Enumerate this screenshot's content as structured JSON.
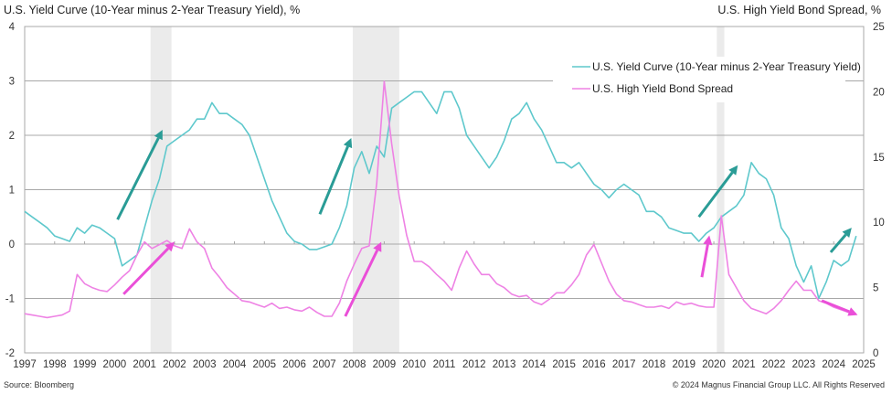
{
  "header": {
    "left_title": "U.S. Yield Curve (10-Year minus 2-Year Treasury Yield), %",
    "right_title": "U.S. High Yield Bond Spread, %"
  },
  "footer": {
    "source": "Source: Bloomberg",
    "copyright": "© 2024 Magnus Financial Group LLC. All Rights Reserved"
  },
  "colors": {
    "yield_curve": "#5ec8cc",
    "hy_spread": "#ee82e4",
    "arrow_teal": "#2a9c96",
    "arrow_pink": "#ea4fd8",
    "recession": "#ebebeb",
    "grid": "#a8a8a8"
  },
  "chart_data": {
    "type": "line",
    "title_left": "U.S. Yield Curve (10-Year minus 2-Year Treasury Yield), %",
    "title_right": "U.S. High Yield Bond Spread, %",
    "xlim": [
      1997,
      2025
    ],
    "x_ticks": [
      "1997",
      "1998",
      "1999",
      "2000",
      "2001",
      "2002",
      "2003",
      "2004",
      "2005",
      "2006",
      "2007",
      "2008",
      "2009",
      "2010",
      "2011",
      "2012",
      "2013",
      "2014",
      "2015",
      "2016",
      "2017",
      "2018",
      "2019",
      "2020",
      "2021",
      "2022",
      "2023",
      "2024",
      "2025"
    ],
    "y_left": {
      "label": "U.S. Yield Curve (10-Year minus 2-Year Treasury Yield), %",
      "lim": [
        -2,
        4
      ],
      "ticks": [
        "-2",
        "-1",
        "0",
        "1",
        "2",
        "3",
        "4"
      ]
    },
    "y_right": {
      "label": "U.S. High Yield Bond Spread, %",
      "lim": [
        0,
        25
      ],
      "ticks": [
        "0",
        "5",
        "10",
        "15",
        "20",
        "25"
      ]
    },
    "grid": true,
    "legend_position": "top-right",
    "recessions": [
      [
        2001.2,
        2001.9
      ],
      [
        2007.95,
        2009.5
      ],
      [
        2020.1,
        2020.35
      ]
    ],
    "series": [
      {
        "name": "U.S. Yield Curve (10-Year minus 2-Year Treasury Yield)",
        "axis": "left",
        "x": [
          1997.0,
          1997.25,
          1997.5,
          1997.75,
          1998.0,
          1998.25,
          1998.5,
          1998.75,
          1999.0,
          1999.25,
          1999.5,
          1999.75,
          2000.0,
          2000.25,
          2000.5,
          2000.75,
          2001.0,
          2001.25,
          2001.5,
          2001.75,
          2002.0,
          2002.25,
          2002.5,
          2002.75,
          2003.0,
          2003.25,
          2003.5,
          2003.75,
          2004.0,
          2004.25,
          2004.5,
          2004.75,
          2005.0,
          2005.25,
          2005.5,
          2005.75,
          2006.0,
          2006.25,
          2006.5,
          2006.75,
          2007.0,
          2007.25,
          2007.5,
          2007.75,
          2008.0,
          2008.25,
          2008.5,
          2008.75,
          2009.0,
          2009.25,
          2009.5,
          2009.75,
          2010.0,
          2010.25,
          2010.5,
          2010.75,
          2011.0,
          2011.25,
          2011.5,
          2011.75,
          2012.0,
          2012.25,
          2012.5,
          2012.75,
          2013.0,
          2013.25,
          2013.5,
          2013.75,
          2014.0,
          2014.25,
          2014.5,
          2014.75,
          2015.0,
          2015.25,
          2015.5,
          2015.75,
          2016.0,
          2016.25,
          2016.5,
          2016.75,
          2017.0,
          2017.25,
          2017.5,
          2017.75,
          2018.0,
          2018.25,
          2018.5,
          2018.75,
          2019.0,
          2019.25,
          2019.5,
          2019.75,
          2020.0,
          2020.25,
          2020.5,
          2020.75,
          2021.0,
          2021.25,
          2021.5,
          2021.75,
          2022.0,
          2022.25,
          2022.5,
          2022.75,
          2023.0,
          2023.25,
          2023.5,
          2023.75,
          2024.0,
          2024.25,
          2024.5,
          2024.75
        ],
        "values": [
          0.6,
          0.5,
          0.4,
          0.3,
          0.15,
          0.1,
          0.05,
          0.3,
          0.2,
          0.35,
          0.3,
          0.2,
          0.1,
          -0.4,
          -0.3,
          -0.2,
          0.3,
          0.8,
          1.2,
          1.8,
          1.9,
          2.0,
          2.1,
          2.3,
          2.3,
          2.6,
          2.4,
          2.4,
          2.3,
          2.2,
          2.0,
          1.6,
          1.2,
          0.8,
          0.5,
          0.2,
          0.05,
          0.0,
          -0.1,
          -0.1,
          -0.05,
          0.0,
          0.3,
          0.7,
          1.4,
          1.7,
          1.3,
          1.8,
          1.6,
          2.5,
          2.6,
          2.7,
          2.8,
          2.8,
          2.6,
          2.4,
          2.8,
          2.8,
          2.5,
          2.0,
          1.8,
          1.6,
          1.4,
          1.6,
          1.9,
          2.3,
          2.4,
          2.6,
          2.3,
          2.1,
          1.8,
          1.5,
          1.5,
          1.4,
          1.5,
          1.3,
          1.1,
          1.0,
          0.85,
          1.0,
          1.1,
          1.0,
          0.9,
          0.6,
          0.6,
          0.5,
          0.3,
          0.25,
          0.2,
          0.2,
          0.05,
          0.2,
          0.3,
          0.5,
          0.6,
          0.7,
          0.9,
          1.5,
          1.3,
          1.2,
          0.9,
          0.3,
          0.1,
          -0.4,
          -0.7,
          -0.4,
          -1.0,
          -0.7,
          -0.3,
          -0.4,
          -0.3,
          0.15
        ]
      },
      {
        "name": "U.S. High Yield Bond Spread",
        "axis": "right",
        "x": [
          1997.0,
          1997.25,
          1997.5,
          1997.75,
          1998.0,
          1998.25,
          1998.5,
          1998.75,
          1999.0,
          1999.25,
          1999.5,
          1999.75,
          2000.0,
          2000.25,
          2000.5,
          2000.75,
          2001.0,
          2001.25,
          2001.5,
          2001.75,
          2002.0,
          2002.25,
          2002.5,
          2002.75,
          2003.0,
          2003.25,
          2003.5,
          2003.75,
          2004.0,
          2004.25,
          2004.5,
          2004.75,
          2005.0,
          2005.25,
          2005.5,
          2005.75,
          2006.0,
          2006.25,
          2006.5,
          2006.75,
          2007.0,
          2007.25,
          2007.5,
          2007.75,
          2008.0,
          2008.25,
          2008.5,
          2008.75,
          2009.0,
          2009.25,
          2009.5,
          2009.75,
          2010.0,
          2010.25,
          2010.5,
          2010.75,
          2011.0,
          2011.25,
          2011.5,
          2011.75,
          2012.0,
          2012.25,
          2012.5,
          2012.75,
          2013.0,
          2013.25,
          2013.5,
          2013.75,
          2014.0,
          2014.25,
          2014.5,
          2014.75,
          2015.0,
          2015.25,
          2015.5,
          2015.75,
          2016.0,
          2016.25,
          2016.5,
          2016.75,
          2017.0,
          2017.25,
          2017.5,
          2017.75,
          2018.0,
          2018.25,
          2018.5,
          2018.75,
          2019.0,
          2019.25,
          2019.5,
          2019.75,
          2020.0,
          2020.25,
          2020.5,
          2020.75,
          2021.0,
          2021.25,
          2021.5,
          2021.75,
          2022.0,
          2022.25,
          2022.5,
          2022.75,
          2023.0,
          2023.25,
          2023.5,
          2023.75,
          2024.0,
          2024.25,
          2024.5,
          2024.75
        ],
        "values": [
          3.0,
          2.9,
          2.8,
          2.7,
          2.8,
          2.9,
          3.2,
          6.0,
          5.3,
          5.0,
          4.8,
          4.7,
          5.2,
          5.8,
          6.3,
          7.5,
          8.5,
          8.0,
          8.3,
          8.6,
          8.2,
          8.0,
          9.5,
          8.5,
          8.0,
          6.5,
          5.8,
          5.0,
          4.5,
          4.0,
          3.9,
          3.7,
          3.5,
          3.8,
          3.4,
          3.5,
          3.3,
          3.2,
          3.5,
          3.1,
          2.8,
          2.8,
          3.8,
          5.5,
          6.8,
          8.0,
          8.2,
          13.0,
          20.8,
          16.0,
          12.0,
          9.0,
          7.0,
          7.0,
          6.6,
          6.0,
          5.5,
          4.8,
          6.5,
          7.8,
          6.8,
          6.0,
          6.0,
          5.3,
          5.0,
          4.5,
          4.3,
          4.4,
          3.9,
          3.7,
          4.1,
          4.6,
          4.6,
          5.2,
          6.0,
          7.5,
          8.3,
          6.9,
          5.5,
          4.5,
          4.0,
          3.9,
          3.7,
          3.5,
          3.5,
          3.6,
          3.4,
          3.9,
          3.7,
          3.8,
          3.6,
          3.5,
          3.5,
          10.5,
          6.0,
          5.0,
          4.0,
          3.4,
          3.2,
          3.0,
          3.4,
          4.0,
          4.8,
          5.5,
          4.8,
          4.8,
          4.0,
          3.8,
          3.5,
          3.3,
          3.1,
          3.0
        ]
      }
    ],
    "annotations": [
      {
        "type": "arrow",
        "series": "U.S. Yield Curve (10-Year minus 2-Year Treasury Yield)",
        "from": [
          2000.1,
          0.45
        ],
        "to": [
          2001.6,
          2.1
        ]
      },
      {
        "type": "arrow",
        "series": "U.S. Yield Curve (10-Year minus 2-Year Treasury Yield)",
        "from": [
          2006.85,
          0.55
        ],
        "to": [
          2007.9,
          1.95
        ]
      },
      {
        "type": "arrow",
        "series": "U.S. Yield Curve (10-Year minus 2-Year Treasury Yield)",
        "from": [
          2019.5,
          0.5
        ],
        "to": [
          2020.8,
          1.45
        ]
      },
      {
        "type": "arrow",
        "series": "U.S. Yield Curve (10-Year minus 2-Year Treasury Yield)",
        "from": [
          2023.9,
          -0.15
        ],
        "to": [
          2024.6,
          0.3
        ]
      },
      {
        "type": "arrow",
        "series": "U.S. High Yield Bond Spread",
        "from": [
          2000.3,
          4.5
        ],
        "to": [
          2002.0,
          8.5
        ]
      },
      {
        "type": "arrow",
        "series": "U.S. High Yield Bond Spread",
        "from": [
          2007.7,
          2.8
        ],
        "to": [
          2008.9,
          8.5
        ]
      },
      {
        "type": "arrow",
        "series": "U.S. High Yield Bond Spread",
        "from": [
          2019.6,
          5.8
        ],
        "to": [
          2019.85,
          9.0
        ]
      },
      {
        "type": "arrow",
        "series": "U.S. High Yield Bond Spread",
        "from": [
          2023.6,
          4.0
        ],
        "to": [
          2024.8,
          2.9
        ]
      }
    ]
  }
}
